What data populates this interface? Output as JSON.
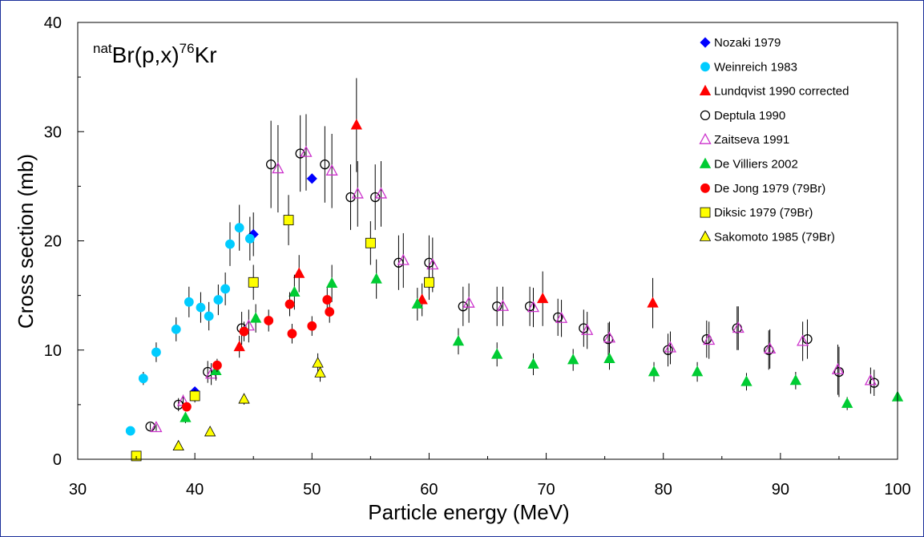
{
  "chart_data": {
    "type": "scatter",
    "title": "natBr(p,x)76Kr",
    "title_parts": {
      "pre_sup": "nat",
      "main": "Br(p,x)",
      "post_sup": "76",
      "tail": "Kr"
    },
    "xlabel": "Particle energy (MeV)",
    "ylabel": "Cross section (mb)",
    "xlim": [
      30,
      100
    ],
    "ylim": [
      0,
      40
    ],
    "xticks": [
      30,
      40,
      50,
      60,
      70,
      80,
      90,
      100
    ],
    "yticks": [
      0,
      10,
      20,
      30,
      40
    ],
    "grid": false,
    "legend_position": "top-right",
    "series": [
      {
        "name": "Nozaki 1979",
        "marker": "diamond",
        "color": "#0000ff",
        "filled": true,
        "points": [
          [
            40.0,
            6.2,
            0.0
          ],
          [
            45.0,
            20.6,
            2.0
          ],
          [
            50.0,
            25.7,
            0.0
          ]
        ]
      },
      {
        "name": "Weinreich 1983",
        "marker": "circle",
        "color": "#00ccff",
        "filled": true,
        "points": [
          [
            34.5,
            2.6,
            0.0
          ],
          [
            35.6,
            7.4,
            0.6
          ],
          [
            36.7,
            9.8,
            0.9
          ],
          [
            38.4,
            11.9,
            1.1
          ],
          [
            39.5,
            14.4,
            1.4
          ],
          [
            40.5,
            13.9,
            1.4
          ],
          [
            41.2,
            13.1,
            1.3
          ],
          [
            42.0,
            14.6,
            1.4
          ],
          [
            42.6,
            15.6,
            1.5
          ],
          [
            43.0,
            19.7,
            2.0
          ],
          [
            43.8,
            21.2,
            2.1
          ],
          [
            44.7,
            20.2,
            2.0
          ]
        ]
      },
      {
        "name": "Lundqvist 1990 corrected",
        "marker": "triangle",
        "color": "#ff0000",
        "filled": true,
        "points": [
          [
            43.8,
            10.3,
            1.0
          ],
          [
            48.9,
            17.0,
            1.7
          ],
          [
            53.8,
            30.6,
            4.3
          ],
          [
            59.4,
            14.6,
            1.5
          ],
          [
            69.7,
            14.7,
            2.5
          ],
          [
            79.1,
            14.3,
            2.3
          ]
        ]
      },
      {
        "name": "Deptula 1990",
        "marker": "circle",
        "color": "#000000",
        "filled": false,
        "points": [
          [
            36.2,
            3.0,
            0.3
          ],
          [
            38.6,
            5.0,
            0.6
          ],
          [
            41.1,
            8.0,
            1.0
          ],
          [
            44.0,
            12.0,
            1.5
          ],
          [
            46.5,
            27.0,
            4.0
          ],
          [
            49.0,
            28.0,
            3.5
          ],
          [
            51.1,
            27.0,
            3.5
          ],
          [
            53.3,
            24.0,
            3.0
          ],
          [
            55.4,
            24.0,
            3.0
          ],
          [
            57.4,
            18.0,
            2.5
          ],
          [
            60.0,
            18.0,
            2.5
          ],
          [
            62.9,
            14.0,
            1.8
          ],
          [
            65.8,
            14.0,
            1.8
          ],
          [
            68.6,
            14.0,
            1.8
          ],
          [
            71.0,
            13.0,
            1.7
          ],
          [
            73.2,
            12.0,
            1.7
          ],
          [
            75.3,
            11.0,
            1.5
          ],
          [
            80.4,
            10.0,
            1.5
          ],
          [
            83.7,
            11.0,
            1.7
          ],
          [
            86.3,
            12.0,
            2.0
          ],
          [
            89.0,
            10.0,
            1.8
          ],
          [
            92.3,
            11.0,
            1.8
          ],
          [
            95.0,
            8.0,
            2.3
          ],
          [
            98.0,
            7.0,
            1.2
          ]
        ]
      },
      {
        "name": "Zaitseva 1991",
        "marker": "triangle",
        "color": "#cc33cc",
        "filled": false,
        "points": [
          [
            36.7,
            2.9,
            0.3
          ],
          [
            39.0,
            5.3,
            0.6
          ],
          [
            41.4,
            7.8,
            1.0
          ],
          [
            44.6,
            12.2,
            1.5
          ],
          [
            47.1,
            26.6,
            4.0
          ],
          [
            49.5,
            28.1,
            3.5
          ],
          [
            51.7,
            26.4,
            3.4
          ],
          [
            53.9,
            24.3,
            3.0
          ],
          [
            55.9,
            24.3,
            3.0
          ],
          [
            57.8,
            18.2,
            2.5
          ],
          [
            60.3,
            17.8,
            2.5
          ],
          [
            63.4,
            14.3,
            1.8
          ],
          [
            66.3,
            14.0,
            1.8
          ],
          [
            68.9,
            13.9,
            1.8
          ],
          [
            71.3,
            12.9,
            1.7
          ],
          [
            73.5,
            11.8,
            1.7
          ],
          [
            75.4,
            11.1,
            1.5
          ],
          [
            80.6,
            10.2,
            1.5
          ],
          [
            83.9,
            10.9,
            1.7
          ],
          [
            86.4,
            12.0,
            2.0
          ],
          [
            89.1,
            10.1,
            1.8
          ],
          [
            91.9,
            10.8,
            1.8
          ],
          [
            94.9,
            8.2,
            2.3
          ],
          [
            97.7,
            7.2,
            1.2
          ]
        ]
      },
      {
        "name": "De Villiers 2002",
        "marker": "triangle",
        "color": "#00cc33",
        "filled": true,
        "points": [
          [
            39.2,
            3.8,
            0.5
          ],
          [
            41.8,
            8.1,
            0.9
          ],
          [
            45.2,
            12.9,
            1.3
          ],
          [
            48.5,
            15.3,
            1.6
          ],
          [
            51.7,
            16.1,
            1.7
          ],
          [
            55.5,
            16.5,
            1.8
          ],
          [
            59.0,
            14.2,
            1.5
          ],
          [
            62.5,
            10.8,
            1.2
          ],
          [
            65.8,
            9.6,
            1.1
          ],
          [
            68.9,
            8.7,
            1.0
          ],
          [
            72.3,
            9.1,
            1.0
          ],
          [
            75.4,
            9.2,
            1.0
          ],
          [
            79.2,
            8.0,
            0.9
          ],
          [
            82.9,
            8.0,
            0.9
          ],
          [
            87.1,
            7.1,
            0.8
          ],
          [
            91.3,
            7.2,
            0.8
          ],
          [
            95.7,
            5.1,
            0.6
          ],
          [
            100.0,
            5.7,
            0.6
          ]
        ]
      },
      {
        "name": "De Jong 1979 (79Br)",
        "marker": "circle",
        "color": "#ff0000",
        "filled": true,
        "points": [
          [
            39.3,
            4.8,
            0.3
          ],
          [
            41.9,
            8.6,
            0.6
          ],
          [
            44.2,
            11.7,
            0.9
          ],
          [
            46.3,
            12.7,
            1.0
          ],
          [
            48.1,
            14.2,
            1.1
          ],
          [
            48.3,
            11.5,
            0.9
          ],
          [
            50.0,
            12.2,
            0.9
          ],
          [
            51.3,
            14.6,
            1.1
          ],
          [
            51.5,
            13.5,
            1.0
          ]
        ]
      },
      {
        "name": "Diksic 1979 (79Br)",
        "marker": "square",
        "color": "#ffff00",
        "filled": true,
        "points": [
          [
            35.0,
            0.3,
            0.0
          ],
          [
            40.0,
            5.8,
            0.6
          ],
          [
            45.0,
            16.2,
            1.6
          ],
          [
            48.0,
            21.9,
            2.3
          ],
          [
            55.0,
            19.8,
            2.0
          ],
          [
            60.0,
            16.2,
            1.6
          ]
        ]
      },
      {
        "name": "Sakomoto 1985 (79Br)",
        "marker": "triangle",
        "color": "#ffff00",
        "filled": true,
        "points": [
          [
            38.6,
            1.2,
            0.1
          ],
          [
            41.3,
            2.5,
            0.2
          ],
          [
            44.2,
            5.5,
            0.5
          ],
          [
            50.5,
            8.8,
            0.9
          ],
          [
            50.7,
            7.9,
            0.8
          ]
        ]
      }
    ]
  }
}
